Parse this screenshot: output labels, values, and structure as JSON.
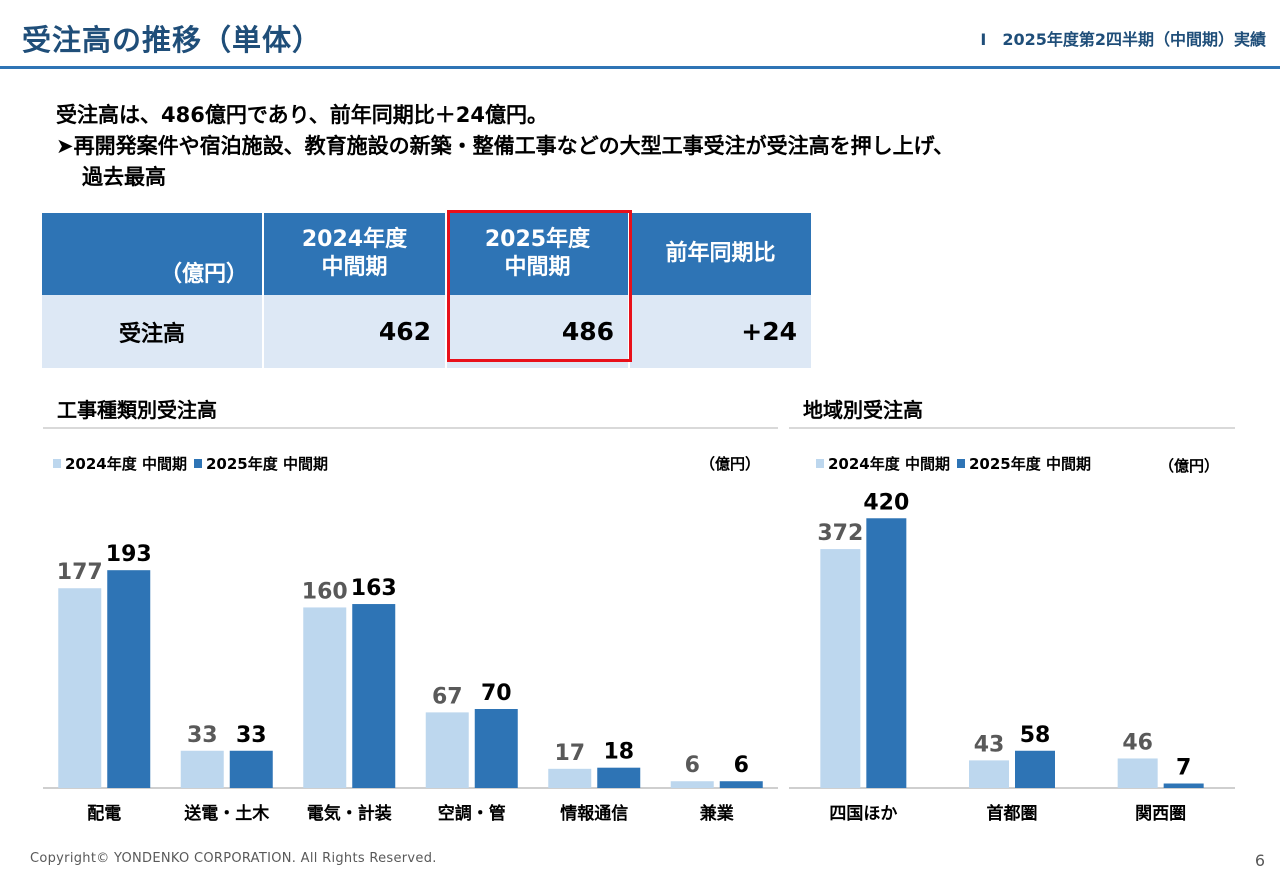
{
  "header": {
    "title": "受注高の推移（単体）",
    "section": "Ⅰ　2025年度第2四半期（中間期）実績"
  },
  "summary": {
    "line1": "受注高は、486億円であり、前年同期比＋24億円。",
    "line2": "➤再開発案件や宿泊施設、教育施設の新築・整備工事などの大型工事受注が受注高を押し上げ、",
    "line3": "過去最高"
  },
  "kpi_table": {
    "unit_label": "（億円）",
    "col1_line1": "2024年度",
    "col1_line2": "中間期",
    "col2_line1": "2025年度",
    "col2_line2": "中間期",
    "col3": "前年同期比",
    "row_label": "受注高",
    "val1": "462",
    "val2": "486",
    "val3": "+24"
  },
  "colors": {
    "prev": "#bdd7ee",
    "curr": "#2e74b5",
    "highlight": "#e8101a",
    "header": "#2e74b5"
  },
  "chart_data": [
    {
      "type": "bar",
      "title": "工事種類別受注高",
      "unit": "（億円）",
      "categories": [
        "配電",
        "送電・土木",
        "電気・計装",
        "空調・管",
        "情報通信",
        "兼業"
      ],
      "series": [
        {
          "name": "2024年度 中間期",
          "values": [
            177,
            33,
            160,
            67,
            17,
            6
          ]
        },
        {
          "name": "2025年度 中間期",
          "values": [
            193,
            33,
            163,
            70,
            18,
            6
          ]
        }
      ],
      "ylim": [
        0,
        210
      ],
      "grid": false,
      "legend": "top-left"
    },
    {
      "type": "bar",
      "title": "地域別受注高",
      "unit": "（億円）",
      "categories": [
        "四国ほか",
        "首都圏",
        "関西圏"
      ],
      "series": [
        {
          "name": "2024年度 中間期",
          "values": [
            372,
            43,
            46
          ]
        },
        {
          "name": "2025年度 中間期",
          "values": [
            420,
            58,
            7
          ]
        }
      ],
      "ylim": [
        0,
        450
      ],
      "grid": false,
      "legend": "top-left"
    }
  ],
  "footer": {
    "copyright": "Copyright© YONDENKO CORPORATION. All Rights Reserved.",
    "page": "6"
  }
}
